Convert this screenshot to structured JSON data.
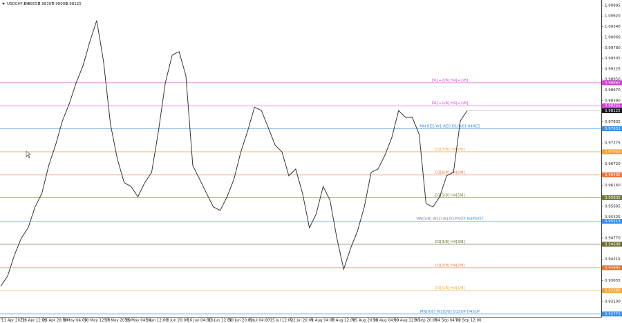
{
  "header": {
    "symbol": "USDCHF,H4",
    "open": 0.98053,
    "high": 0.98397,
    "low": 0.98005,
    "close": 0.98125
  },
  "chart_data": {
    "type": "line",
    "series": [
      {
        "name": "USDCHF",
        "color": "#333333",
        "values": [
          0.935,
          0.9377,
          0.9432,
          0.9477,
          0.9504,
          0.9559,
          0.9595,
          0.9668,
          0.9722,
          0.9786,
          0.9831,
          0.9886,
          0.9931,
          0.9995,
          1.005,
          0.9941,
          0.9777,
          0.9686,
          0.9623,
          0.9613,
          0.9586,
          0.9623,
          0.965,
          0.9759,
          0.9886,
          0.9959,
          0.9968,
          0.9904,
          0.9668,
          0.9632,
          0.9595,
          0.9559,
          0.955,
          0.9586,
          0.9632,
          0.9704,
          0.9759,
          0.9822,
          0.9813,
          0.9768,
          0.9722,
          0.9704,
          0.9641,
          0.9659,
          0.9595,
          0.9504,
          0.9541,
          0.9613,
          0.9577,
          0.9477,
          0.9395,
          0.945,
          0.9495,
          0.9559,
          0.965,
          0.9659,
          0.9695,
          0.9741,
          0.9813,
          0.9795,
          0.9795,
          0.975,
          0.9568,
          0.9559,
          0.9586,
          0.9641,
          0.965,
          0.9786,
          0.98125
        ]
      }
    ],
    "ylim": [
      0.9268,
      1.0104
    ],
    "yticks": [
      1.00895,
      {
        "value": 1.0062,
        "label": "1.00620"
      },
      {
        "value": 1.0034,
        "label": "1.00340"
      },
      {
        "value": 1.0006,
        "label": "1.00060"
      },
      {
        "value": 0.9978,
        "label": "0.99780"
      },
      0.99505,
      0.99225,
      {
        "value": 0.9895,
        "label": "0.98950"
      },
      {
        "value": 0.9867,
        "label": "0.98670"
      },
      {
        "value": 0.9839,
        "label": "0.98390"
      },
      0.97835,
      0.97275,
      {
        "value": 0.9672,
        "label": "0.96720"
      },
      {
        "value": 0.9616,
        "label": "0.96160"
      },
      0.95605,
      0.95325,
      {
        "value": 0.9477,
        "label": "0.94770"
      },
      0.94215,
      0.93655,
      {
        "value": 0.931,
        "label": "0.93100"
      }
    ],
    "xticks": [
      "11 Apr 2022",
      "18 Apr 12:00",
      "25 Apr 20:00",
      "3 May 04:00",
      "10 May 12:00",
      "17 May 20:00",
      "25 May 04:00",
      "1 Jun 12:00",
      "8 Jun 20:00",
      "16 Jun 04:00",
      "23 Jun 12:00",
      "30 Jun 20:00",
      "8 Jul 04:00",
      "15 Jul 12:00",
      "22 Jul 20:00",
      "1 Aug 04:00",
      "8 Aug 12:00",
      "15 Aug 20:00",
      "23 Aug 04:00",
      "30 Aug 12:00",
      "8 Sep 20:00",
      "14 Sep 04:00",
      "21 Sep 12:00"
    ],
    "levels": [
      {
        "label": "D1[+2/8] H4[+2/8]",
        "value": 0.98861,
        "color": "#d63cd6"
      },
      {
        "label": "D1[+1/8] H4[+1/8]",
        "value": 0.98255,
        "color": "#d63cd6"
      },
      {
        "label": "MN RES W1 RES D1[8/8] H4RES",
        "value": 0.97651,
        "color": "#3a8ee6"
      },
      {
        "label": "D1[7/8] H4[7/8]",
        "value": 0.97043,
        "color": "#f0a030"
      },
      {
        "label": "D1[6/8] H4[6/8]",
        "value": 0.96436,
        "color": "#e8703a"
      },
      {
        "label": "D1[5/8] H4[5/8]",
        "value": 0.95835,
        "color": "#6b7a2a"
      },
      {
        "label": "MN[1/8] W1[7/8] D1PIVOT H4PIVOT",
        "value": 0.95213,
        "color": "#3a8ee6"
      },
      {
        "label": "D1[3/8] H4[3/8]",
        "value": 0.94608,
        "color": "#6b6a30"
      },
      {
        "label": "D1[2/8] H4[2/8]",
        "value": 0.93991,
        "color": "#e8703a"
      },
      {
        "label": "D1[1/8] H4[1/8]",
        "value": 0.93389,
        "color": "#f0a030"
      },
      {
        "label": "MN[0/8] W1[0/8] D1SUP H4SUP",
        "value": 0.92773,
        "color": "#3a8ee6"
      }
    ]
  }
}
